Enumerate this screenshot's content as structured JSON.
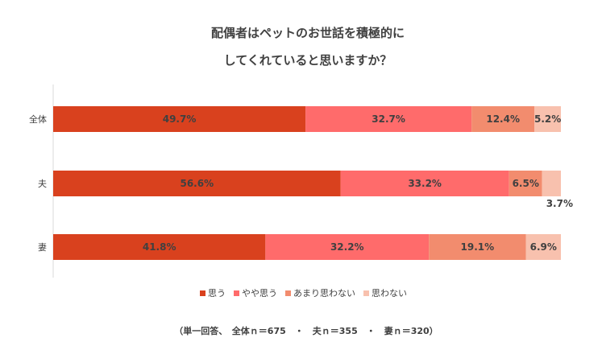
{
  "chart_data": {
    "type": "bar",
    "orientation": "horizontal",
    "stacked": true,
    "title_lines": [
      "配偶者はペットのお世話を積極的に",
      "してくれていると思いますか？"
    ],
    "categories": [
      "全体",
      "夫",
      "妻"
    ],
    "series": [
      {
        "name": "思う",
        "color": "#d9411e",
        "values": [
          49.7,
          56.6,
          41.8
        ]
      },
      {
        "name": "やや思う",
        "color": "#ff6b6b",
        "values": [
          32.7,
          33.2,
          32.2
        ]
      },
      {
        "name": "あまり思わない",
        "color": "#f28c6e",
        "values": [
          12.4,
          6.5,
          19.1
        ]
      },
      {
        "name": "思わない",
        "color": "#f8c1ae",
        "values": [
          5.2,
          3.7,
          6.9
        ]
      }
    ],
    "xlim": [
      0,
      100
    ],
    "value_suffix": "%",
    "legend_position": "bottom",
    "grid": false,
    "note": "（単一回答、　全体ｎ＝675　・　夫ｎ＝355　・　妻ｎ＝320）"
  }
}
